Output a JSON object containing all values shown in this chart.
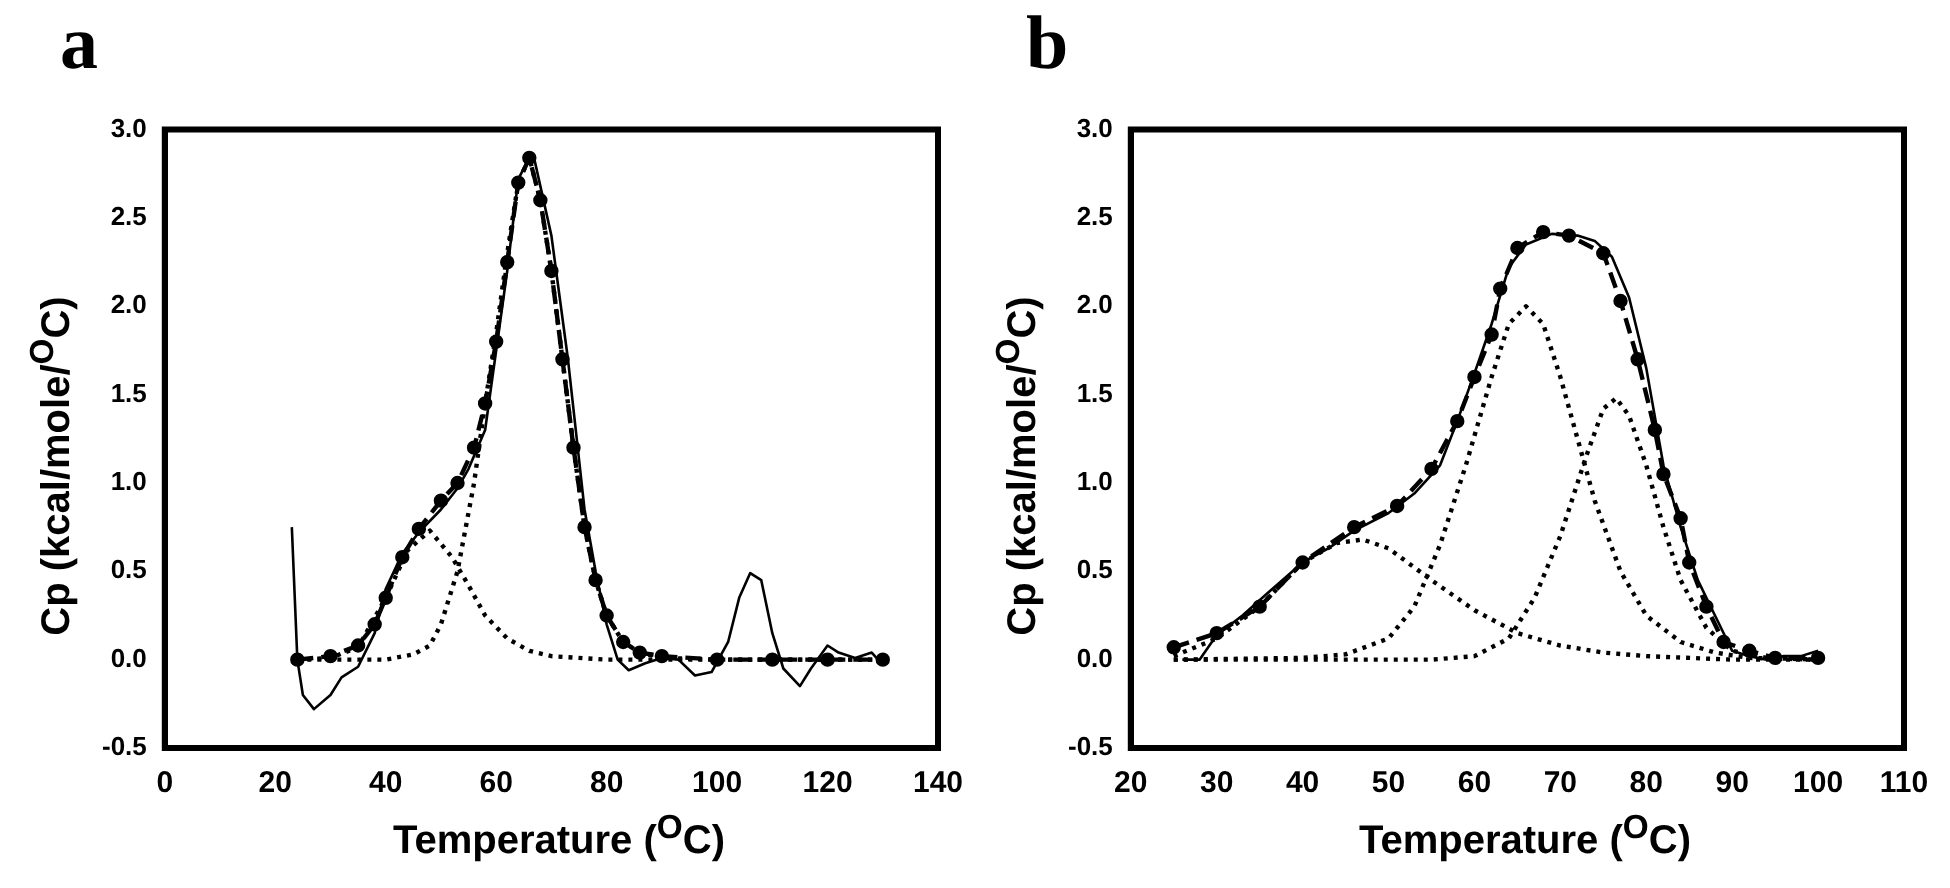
{
  "chart_data": [
    {
      "type": "line",
      "title": "a",
      "xlabel": "Temperature ($^{O}$C)",
      "ylabel": "Cp (kcal/mole/$^{O}$C)",
      "xlim": [
        0,
        140
      ],
      "ylim": [
        -0.5,
        3.0
      ],
      "xticks": [
        0,
        20,
        40,
        60,
        80,
        100,
        120,
        140
      ],
      "yticks": [
        {
          "value": -0.5,
          "label": "-0.5"
        },
        {
          "value": 0,
          "label": "0.0"
        },
        {
          "value": 0.5,
          "label": "0.5"
        },
        {
          "value": 1,
          "label": "1.0"
        },
        {
          "value": 1.5,
          "label": "1.5"
        },
        {
          "value": 2,
          "label": "2.0"
        },
        {
          "value": 2.5,
          "label": "2.5"
        },
        {
          "value": 3,
          "label": "3.0"
        }
      ],
      "grid": false,
      "legend": false,
      "series": [
        {
          "color": "#000000",
          "line_style": "solid",
          "marker": "none",
          "x": [
            23,
            24,
            25,
            27,
            30,
            32,
            35,
            38,
            40,
            43,
            46,
            50,
            53,
            55,
            58,
            60,
            62,
            64,
            66,
            67,
            70,
            73,
            76,
            78,
            80,
            82,
            84,
            87,
            90,
            93,
            96,
            99,
            102,
            104,
            106,
            108,
            110,
            112,
            115,
            117,
            120,
            122,
            125,
            128,
            130
          ],
          "values": [
            0.75,
            0.0,
            -0.2,
            -0.28,
            -0.2,
            -0.1,
            -0.04,
            0.15,
            0.4,
            0.6,
            0.72,
            0.85,
            0.97,
            1.08,
            1.3,
            1.75,
            2.2,
            2.72,
            2.84,
            2.82,
            2.4,
            1.7,
            0.85,
            0.5,
            0.2,
            0.0,
            -0.06,
            -0.02,
            0.01,
            0.0,
            -0.09,
            -0.07,
            0.1,
            0.35,
            0.49,
            0.45,
            0.15,
            -0.05,
            -0.15,
            -0.05,
            0.08,
            0.04,
            0.01,
            0.04,
            -0.03
          ]
        },
        {
          "color": "#000000",
          "line_style": "dashed",
          "marker": "circle",
          "x": [
            24,
            30,
            35,
            38,
            40,
            43,
            46,
            50,
            53,
            56,
            58,
            60,
            62,
            64,
            66,
            68,
            70,
            72,
            74,
            76,
            78,
            80,
            83,
            86,
            90,
            100,
            110,
            120,
            130
          ],
          "values": [
            0,
            0.02,
            0.08,
            0.2,
            0.35,
            0.58,
            0.74,
            0.9,
            1.0,
            1.2,
            1.45,
            1.8,
            2.25,
            2.7,
            2.84,
            2.6,
            2.2,
            1.7,
            1.2,
            0.75,
            0.45,
            0.25,
            0.1,
            0.04,
            0.02,
            0,
            0,
            0,
            0
          ]
        },
        {
          "color": "#000000",
          "line_style": "dotted",
          "marker": "none",
          "x": [
            24,
            30,
            35,
            40,
            44,
            48,
            52,
            55,
            58,
            62,
            66,
            70,
            80,
            130
          ],
          "values": [
            0,
            0.01,
            0.07,
            0.35,
            0.62,
            0.73,
            0.58,
            0.42,
            0.25,
            0.12,
            0.05,
            0.02,
            0,
            0
          ]
        },
        {
          "color": "#000000",
          "line_style": "dotted",
          "marker": "none",
          "x": [
            24,
            40,
            45,
            48,
            50,
            53,
            56,
            58,
            60,
            62,
            64,
            66,
            68,
            70,
            72,
            74,
            76,
            78,
            80,
            83,
            86,
            90,
            100,
            130
          ],
          "values": [
            0,
            0,
            0.03,
            0.08,
            0.2,
            0.5,
            1.0,
            1.45,
            1.85,
            2.3,
            2.7,
            2.84,
            2.6,
            2.2,
            1.7,
            1.2,
            0.75,
            0.45,
            0.25,
            0.1,
            0.04,
            0.01,
            0,
            0
          ]
        }
      ]
    },
    {
      "type": "line",
      "title": "b",
      "xlabel": "Temperature ($^{O}$C)",
      "ylabel": "Cp (kcal/mole/$^{O}$C)",
      "xlim": [
        20,
        110
      ],
      "ylim": [
        -0.5,
        3.0
      ],
      "xticks": [
        20,
        30,
        40,
        50,
        60,
        70,
        80,
        90,
        100,
        110
      ],
      "yticks": [
        {
          "value": -0.5,
          "label": "-0.5"
        },
        {
          "value": 0,
          "label": "0.0"
        },
        {
          "value": 0.5,
          "label": "0.5"
        },
        {
          "value": 1,
          "label": "1.0"
        },
        {
          "value": 1.5,
          "label": "1.5"
        },
        {
          "value": 2,
          "label": "2.0"
        },
        {
          "value": 2.5,
          "label": "2.5"
        },
        {
          "value": 3,
          "label": "3.0"
        }
      ],
      "grid": false,
      "legend": false,
      "series": [
        {
          "color": "#000000",
          "line_style": "solid",
          "marker": "none",
          "x": [
            26,
            28,
            30,
            33,
            36,
            40,
            43,
            46,
            50,
            53,
            56,
            58,
            60,
            62,
            64,
            66,
            69,
            72,
            74,
            76,
            78,
            80,
            82,
            84,
            86,
            88,
            90,
            92,
            94,
            96,
            98,
            100
          ],
          "values": [
            0.0,
            0.0,
            0.14,
            0.25,
            0.38,
            0.55,
            0.63,
            0.73,
            0.83,
            0.94,
            1.1,
            1.35,
            1.62,
            1.9,
            2.22,
            2.35,
            2.41,
            2.4,
            2.37,
            2.28,
            2.05,
            1.65,
            1.1,
            0.75,
            0.45,
            0.25,
            0.05,
            0.02,
            0.0,
            0.02,
            0.02,
            0.05
          ]
        },
        {
          "color": "#000000",
          "line_style": "dashed",
          "marker": "circle",
          "x": [
            25,
            30,
            35,
            40,
            46,
            51,
            55,
            58,
            60,
            62,
            63,
            65,
            68,
            71,
            75,
            77,
            79,
            81,
            82,
            84,
            85,
            87,
            89,
            92,
            95,
            100
          ],
          "values": [
            0.07,
            0.15,
            0.3,
            0.55,
            0.75,
            0.87,
            1.08,
            1.35,
            1.6,
            1.84,
            2.1,
            2.33,
            2.42,
            2.4,
            2.3,
            2.03,
            1.7,
            1.3,
            1.05,
            0.8,
            0.55,
            0.3,
            0.1,
            0.05,
            0.01,
            0.01
          ]
        },
        {
          "color": "#000000",
          "line_style": "dotted",
          "marker": "none",
          "x": [
            25,
            30,
            35,
            40,
            44,
            47,
            50,
            55,
            60,
            65,
            70,
            75,
            80,
            90,
            100
          ],
          "values": [
            0.02,
            0.12,
            0.3,
            0.55,
            0.66,
            0.68,
            0.63,
            0.45,
            0.28,
            0.15,
            0.08,
            0.04,
            0.02,
            0.0,
            0
          ]
        },
        {
          "color": "#000000",
          "line_style": "dotted",
          "marker": "none",
          "x": [
            25,
            40,
            45,
            50,
            53,
            56,
            59,
            62,
            64,
            66,
            68,
            70,
            72,
            74,
            77,
            80,
            84,
            88,
            92,
            100
          ],
          "values": [
            0,
            0.01,
            0.03,
            0.12,
            0.3,
            0.65,
            1.1,
            1.6,
            1.9,
            2.0,
            1.9,
            1.6,
            1.25,
            0.9,
            0.5,
            0.25,
            0.1,
            0.04,
            0.01,
            0
          ]
        },
        {
          "color": "#000000",
          "line_style": "dotted",
          "marker": "none",
          "x": [
            25,
            55,
            60,
            64,
            67,
            70,
            73,
            75,
            76.5,
            78,
            80,
            82,
            84,
            87,
            90,
            94,
            100
          ],
          "values": [
            0,
            0,
            0.02,
            0.12,
            0.35,
            0.7,
            1.15,
            1.42,
            1.48,
            1.38,
            1.1,
            0.75,
            0.45,
            0.18,
            0.05,
            0.01,
            0
          ]
        }
      ]
    }
  ]
}
